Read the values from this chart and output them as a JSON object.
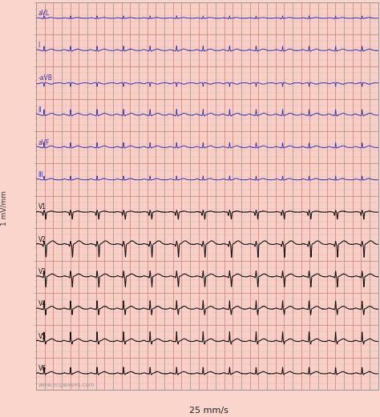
{
  "background_color": "#f9d5cc",
  "grid_minor_color": "#e8b5aa",
  "grid_major_color": "#cc8880",
  "lead_labels_limb": [
    "aVL",
    "I",
    "-aVB",
    "II",
    "aVF",
    "III"
  ],
  "lead_labels_chest": [
    "V1",
    "V2",
    "V3",
    "V4",
    "V5",
    "V6"
  ],
  "limb_line_color": "#3333bb",
  "chest_line_color": "#111111",
  "ylabel": "1 mV/mm",
  "xlabel": "25 mm/s",
  "watermark": "www.ecgwaves.com",
  "fig_width": 4.74,
  "fig_height": 5.21,
  "dpi": 100,
  "lead_types": [
    "aVL",
    "I",
    "-aVB",
    "II",
    "aVF",
    "III",
    "V1",
    "V2",
    "V3",
    "V4",
    "V5",
    "V6"
  ],
  "n_samples": 2000,
  "beat_interval": 0.62,
  "noise_level": 0.005
}
